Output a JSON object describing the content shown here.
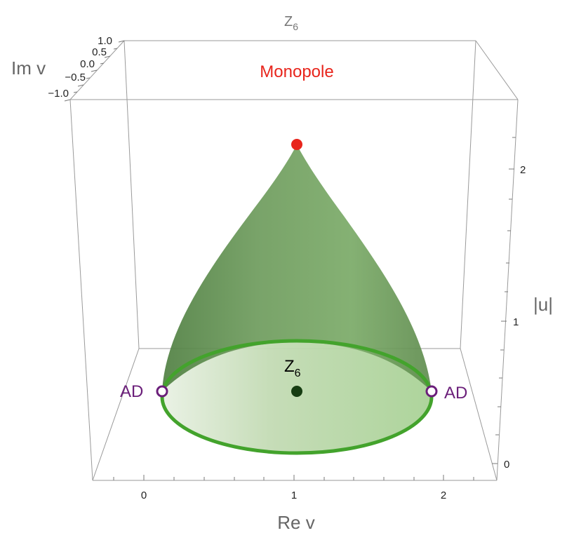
{
  "chart_data": {
    "type": "surface3d",
    "title": "Z",
    "title_sub": "6",
    "x_axis": {
      "label": "Re v",
      "ticks": [
        "0",
        "1",
        "2"
      ],
      "range": [
        -0.35,
        2.35
      ]
    },
    "y_axis": {
      "label": "Im v",
      "ticks": [
        "1.0",
        "0.5",
        "0.0",
        "−0.5",
        "−1.0"
      ],
      "range": [
        -1.0,
        1.0
      ]
    },
    "z_axis": {
      "label": "|u|",
      "ticks": [
        "0",
        "1",
        "2"
      ],
      "range": [
        -0.1,
        2.3
      ]
    },
    "surface": {
      "apex": {
        "re_v": 1.0,
        "im_v": 0.0,
        "abs_u": 2.15
      },
      "base_radius": 0.9,
      "base_center": {
        "re_v": 1.0,
        "im_v": 0.0,
        "abs_u": 0.55
      },
      "color": "#6f9e5c"
    },
    "base_circle": {
      "color": "#43a32c"
    },
    "points": [
      {
        "label": "Monopole",
        "re_v": 1.0,
        "im_v": 0.0,
        "abs_u": 2.15,
        "color": "#e8251c",
        "label_color": "#e8251c"
      },
      {
        "label": "AD",
        "re_v": 0.1,
        "im_v": 0.0,
        "abs_u": 0.55,
        "color": "#6b1f7a",
        "label_color": "#6b1f7a",
        "hollow": true
      },
      {
        "label": "AD",
        "re_v": 1.9,
        "im_v": 0.0,
        "abs_u": 0.55,
        "color": "#6b1f7a",
        "label_color": "#6b1f7a",
        "hollow": true
      },
      {
        "label": "Z",
        "label_sub": "6",
        "re_v": 1.0,
        "im_v": 0.0,
        "abs_u": 0.55,
        "color": "#163d12",
        "label_color": "#000000"
      }
    ]
  }
}
